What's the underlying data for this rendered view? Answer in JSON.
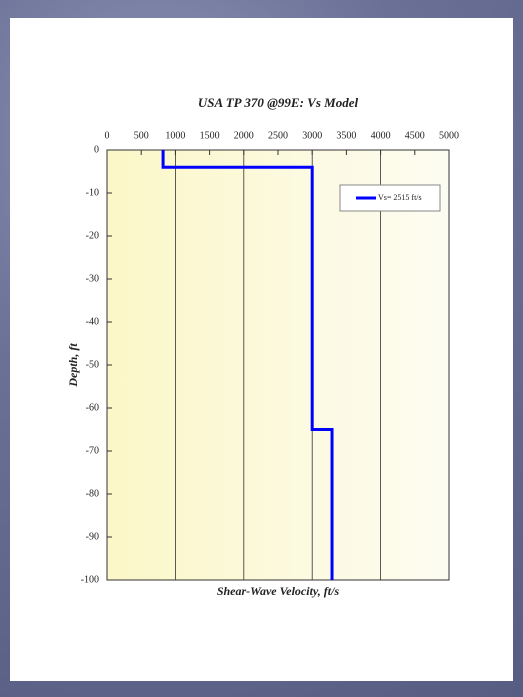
{
  "chart_data": {
    "type": "line",
    "title": "USA TP 370 @99E: Vs Model",
    "x_label": "Shear-Wave Velocity, ft/s",
    "y_label": "Depth, ft",
    "xlim": [
      0,
      5000
    ],
    "xticks": [
      0,
      500,
      1000,
      1500,
      2000,
      2500,
      3000,
      3500,
      4000,
      4500,
      5000
    ],
    "ylim": [
      -100,
      0
    ],
    "yticks": [
      0,
      -10,
      -20,
      -30,
      -40,
      -50,
      -60,
      -70,
      -80,
      -90,
      -100
    ],
    "grid": true,
    "legend": "upper right",
    "series": [
      {
        "name": "Vs= 2515 ft/s",
        "color": "#0000ff",
        "x": [
          820,
          820,
          3000,
          3000,
          3290,
          3290
        ],
        "values": [
          0,
          -4,
          -4,
          -65,
          -65,
          -100
        ]
      }
    ]
  }
}
